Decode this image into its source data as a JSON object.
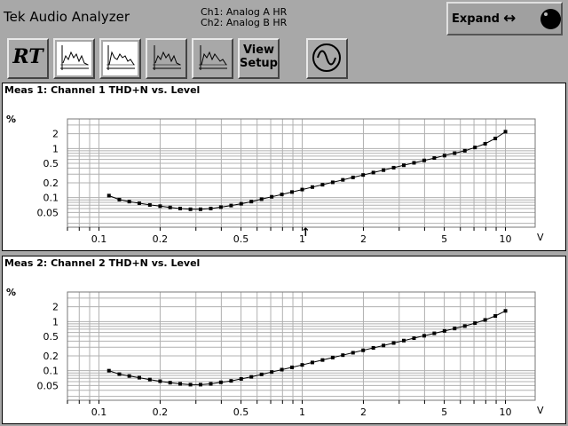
{
  "app": {
    "brand": "Tek",
    "name": "Audio Analyzer"
  },
  "channels": {
    "ch1": "Ch1: Analog A HR",
    "ch2": "Ch2: Analog B HR"
  },
  "expand": {
    "label": "Expand",
    "arrows": "↔",
    "icon": "knob-icon"
  },
  "toolbar": {
    "rt_label": "RT",
    "view_label_1": "View",
    "view_label_2": "Setup",
    "graph_buttons": [
      "graph-1",
      "graph-2",
      "graph-3",
      "graph-4"
    ],
    "generator_icon": "sine-wave-icon"
  },
  "colors": {
    "background": "#a8a8a8",
    "panel": "#ffffff",
    "trace": "#000000",
    "grid": "#b0b0b0"
  },
  "meas1": {
    "title": "Meas 1: Channel 1 THD+N vs. Level",
    "y_unit": "%",
    "x_unit": "V",
    "cursor_marker": "↑"
  },
  "meas2": {
    "title": "Meas 2: Channel 2 THD+N vs. Level",
    "y_unit": "%",
    "x_unit": "V"
  },
  "chart_data": [
    {
      "type": "line",
      "title": "Meas 1: Channel 1 THD+N vs. Level",
      "xscale": "log",
      "yscale": "log",
      "xlim": [
        0.07,
        14
      ],
      "ylim": [
        0.025,
        4
      ],
      "x_ticks": [
        "0.1",
        "0.2",
        "0.5",
        "1",
        "2",
        "5",
        "10"
      ],
      "y_ticks": [
        "2",
        "1",
        "0.5",
        "0.2",
        "0.1",
        "0.05"
      ],
      "xlabel": "V",
      "ylabel": "%",
      "grid": true,
      "x": [
        0.112,
        0.126,
        0.141,
        0.158,
        0.178,
        0.2,
        0.224,
        0.251,
        0.282,
        0.316,
        0.355,
        0.398,
        0.447,
        0.501,
        0.562,
        0.631,
        0.708,
        0.794,
        0.891,
        1.0,
        1.122,
        1.259,
        1.413,
        1.585,
        1.778,
        1.995,
        2.239,
        2.512,
        2.818,
        3.162,
        3.548,
        3.981,
        4.467,
        5.012,
        5.623,
        6.31,
        7.079,
        7.943,
        8.913,
        10.0
      ],
      "y": [
        0.11,
        0.091,
        0.083,
        0.077,
        0.071,
        0.067,
        0.063,
        0.06,
        0.058,
        0.058,
        0.06,
        0.064,
        0.069,
        0.075,
        0.083,
        0.093,
        0.104,
        0.116,
        0.13,
        0.146,
        0.164,
        0.183,
        0.205,
        0.23,
        0.258,
        0.289,
        0.324,
        0.363,
        0.407,
        0.456,
        0.511,
        0.572,
        0.64,
        0.717,
        0.803,
        0.9,
        1.05,
        1.25,
        1.6,
        2.2
      ]
    },
    {
      "type": "line",
      "title": "Meas 2: Channel 2 THD+N vs. Level",
      "xscale": "log",
      "yscale": "log",
      "xlim": [
        0.07,
        14
      ],
      "ylim": [
        0.025,
        4
      ],
      "x_ticks": [
        "0.1",
        "0.2",
        "0.5",
        "1",
        "2",
        "5",
        "10"
      ],
      "y_ticks": [
        "2",
        "1",
        "0.5",
        "0.2",
        "0.1",
        "0.05"
      ],
      "xlabel": "V",
      "ylabel": "%",
      "grid": true,
      "x": [
        0.112,
        0.126,
        0.141,
        0.158,
        0.178,
        0.2,
        0.224,
        0.251,
        0.282,
        0.316,
        0.355,
        0.398,
        0.447,
        0.501,
        0.562,
        0.631,
        0.708,
        0.794,
        0.891,
        1.0,
        1.122,
        1.259,
        1.413,
        1.585,
        1.778,
        1.995,
        2.239,
        2.512,
        2.818,
        3.162,
        3.548,
        3.981,
        4.467,
        5.012,
        5.623,
        6.31,
        7.079,
        7.943,
        8.913,
        10.0
      ],
      "y": [
        0.1,
        0.085,
        0.078,
        0.072,
        0.066,
        0.061,
        0.057,
        0.054,
        0.052,
        0.052,
        0.054,
        0.058,
        0.062,
        0.068,
        0.075,
        0.084,
        0.094,
        0.105,
        0.117,
        0.131,
        0.147,
        0.165,
        0.185,
        0.207,
        0.232,
        0.26,
        0.291,
        0.326,
        0.366,
        0.41,
        0.459,
        0.514,
        0.576,
        0.645,
        0.722,
        0.81,
        0.93,
        1.08,
        1.3,
        1.65
      ]
    }
  ]
}
